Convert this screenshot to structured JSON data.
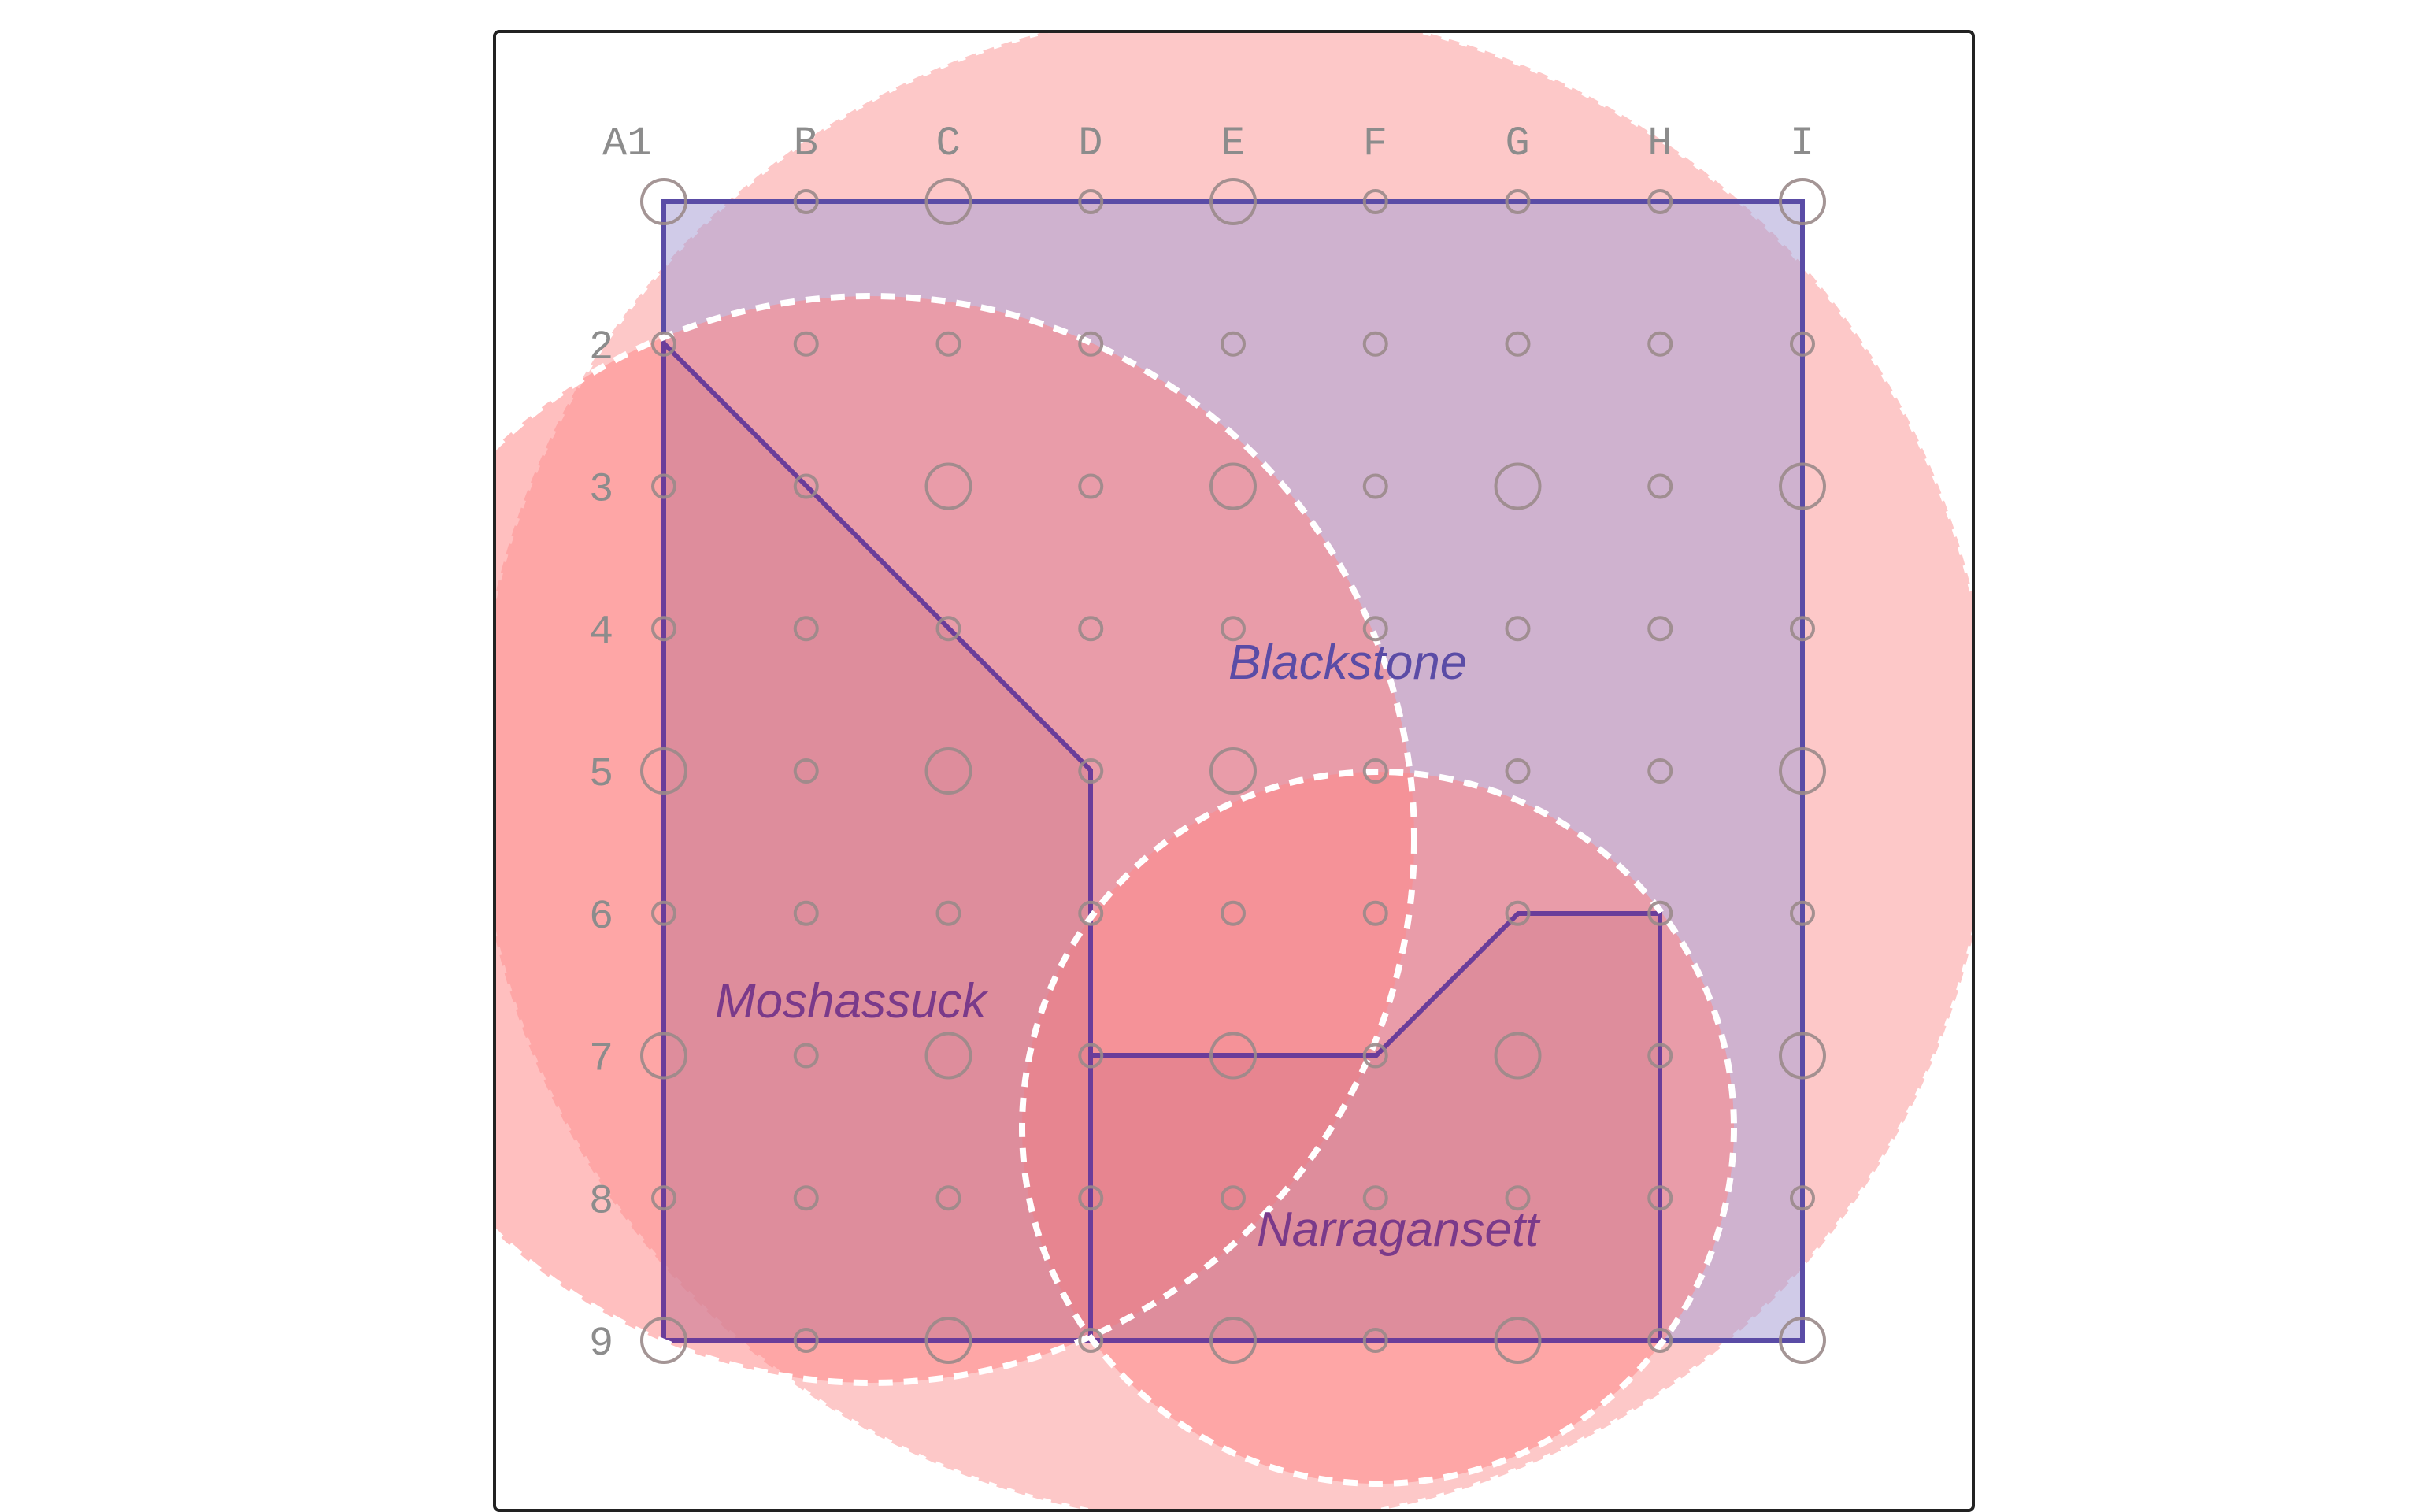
{
  "board": {
    "columns": [
      "A1",
      "B",
      "C",
      "D",
      "E",
      "F",
      "G",
      "H",
      "I"
    ],
    "rows": [
      "2",
      "3",
      "4",
      "5",
      "6",
      "7",
      "8",
      "9"
    ],
    "large_points": [
      "A1",
      "C1",
      "E1",
      "I1",
      "C3",
      "E3",
      "G3",
      "I3",
      "A5",
      "C5",
      "E5",
      "I5",
      "A7",
      "C7",
      "E7",
      "G7",
      "I7",
      "A9",
      "C9",
      "E9",
      "G9",
      "I9"
    ]
  },
  "territories": [
    {
      "name": "Blackstone",
      "color": "#5a4ca6",
      "fill": "#b8a8d8"
    },
    {
      "name": "Moshassuck",
      "color": "#7a3a8a",
      "fill": "#c8788f"
    },
    {
      "name": "Narragansett",
      "color": "#7a3a8a",
      "fill": "#c8788f"
    }
  ],
  "colors": {
    "outer_circle": "#fdc8c8",
    "inner_circle": "#ff9a9a",
    "lens": "#e86070",
    "grid_line": "#6a3d9a",
    "frame": "#222222",
    "dashed": "#ffffff"
  }
}
